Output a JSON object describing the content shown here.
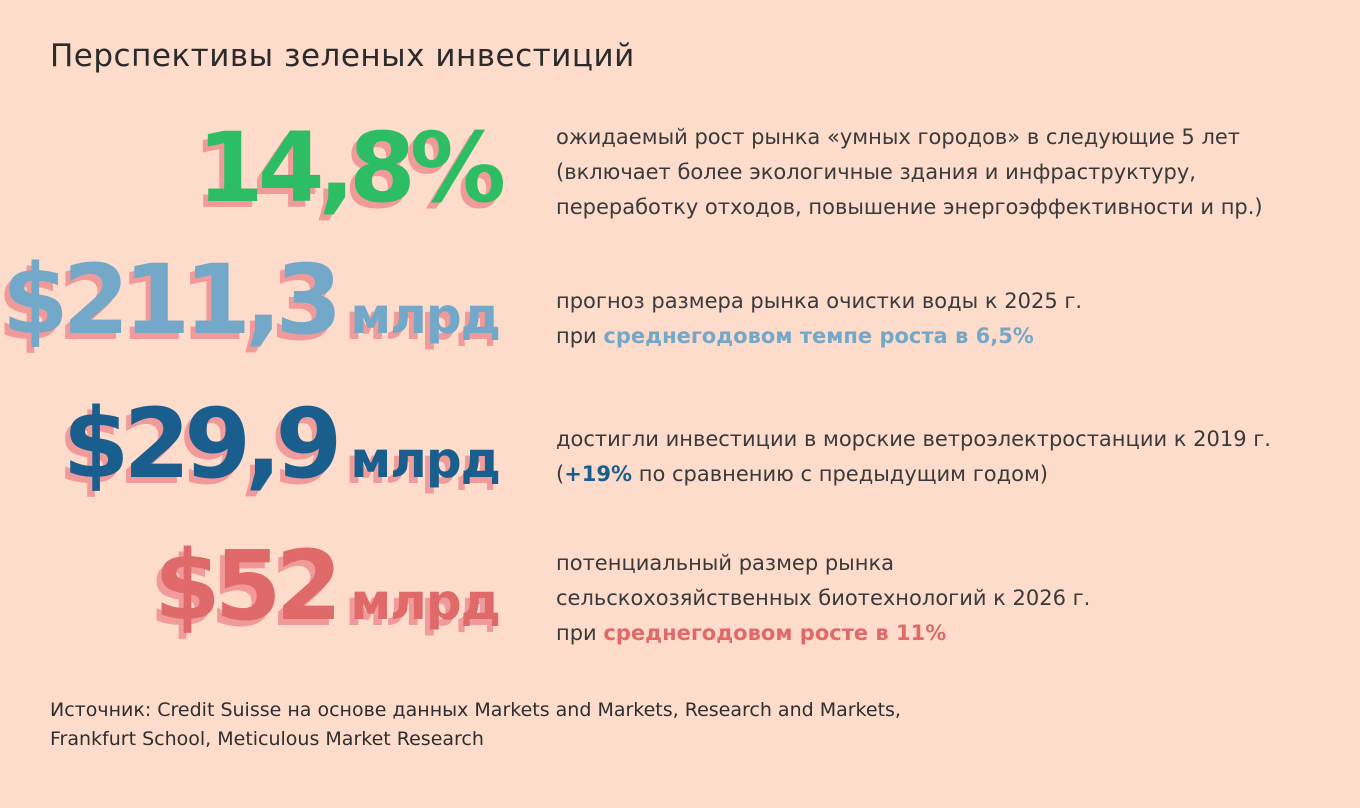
{
  "title": "Перспективы зеленых инвестиций",
  "colors": {
    "background": "#fddccc",
    "green": "#2dbd64",
    "light_blue": "#74a8c8",
    "dark_blue": "#1a5e8e",
    "red": "#e06a6a",
    "shadow_pink": "#f19a9a"
  },
  "stats": [
    {
      "value": "14,8%",
      "unit": "",
      "color": "#2dbd64",
      "lines": [
        "ожидаемый рост рынка «умных городов» в следующие 5 лет",
        "(включает более экологичные здания и инфраструктуру,",
        "переработку отходов, повышение энергоэффективности и пр.)"
      ]
    },
    {
      "value": "$211,3",
      "unit": "млрд",
      "color": "#74a8c8",
      "line1": "прогноз размера рынка очистки воды к 2025 г.",
      "line2_prefix": "при ",
      "line2_highlight": "среднегодовом темпе роста в 6,5%"
    },
    {
      "value": "$29,9",
      "unit": "млрд",
      "color": "#1a5e8e",
      "line1": "достигли инвестиции в морские ветроэлектростанции к 2019 г.",
      "line2_open": "(",
      "line2_highlight": "+19%",
      "line2_rest": " по сравнению с предыдущим годом)"
    },
    {
      "value": "$52",
      "unit": "млрд",
      "color": "#e06a6a",
      "line1": "потенциальный размер рынка",
      "line2": "сельскохозяйственных биотехнологий к 2026 г.",
      "line3_prefix": "при ",
      "line3_highlight": "среднегодовом росте в 11%"
    }
  ],
  "source": {
    "line1": "Источник: Credit Suisse на основе данных Markets and Markets, Research and Markets,",
    "line2": "Frankfurt School, Meticulous Market Research"
  }
}
